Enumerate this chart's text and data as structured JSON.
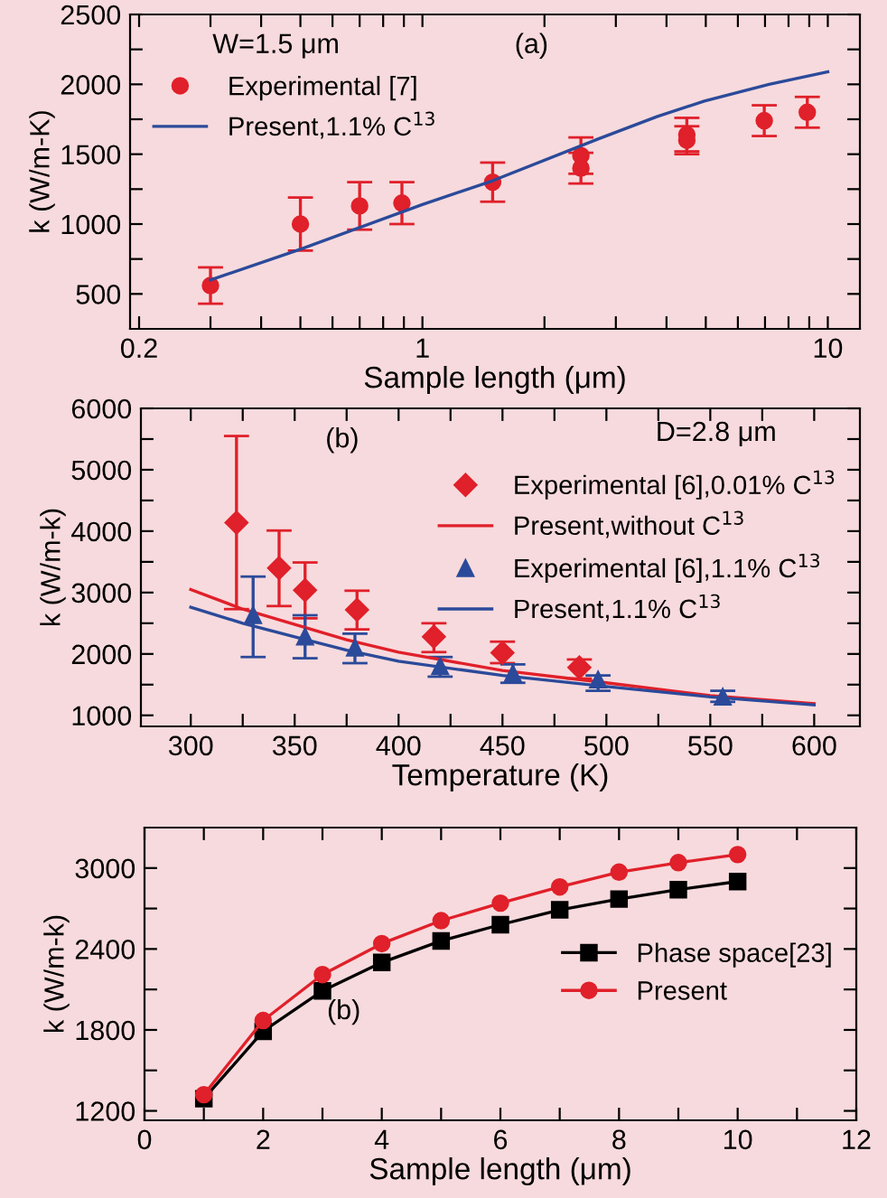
{
  "chart_data": [
    {
      "type": "scatter",
      "xlabel": "Sample length (μm)",
      "ylabel": "k (W/m-K)",
      "log": "x",
      "xlim": [
        0.19,
        12
      ],
      "xticks": [
        0.2,
        {
          "value": 0.3,
          "label": null
        },
        {
          "value": 0.4,
          "label": null
        },
        {
          "value": 0.5,
          "label": null
        },
        {
          "value": 0.6,
          "label": null
        },
        {
          "value": 0.7,
          "label": null
        },
        {
          "value": 0.8,
          "label": null
        },
        {
          "value": 0.9,
          "label": null
        },
        1,
        {
          "value": 2,
          "label": null
        },
        {
          "value": 3,
          "label": null
        },
        {
          "value": 4,
          "label": null
        },
        {
          "value": 5,
          "label": null
        },
        {
          "value": 6,
          "label": null
        },
        {
          "value": 7,
          "label": null
        },
        {
          "value": 8,
          "label": null
        },
        {
          "value": 9,
          "label": null
        },
        10
      ],
      "ylim": [
        250,
        2500
      ],
      "yticks": [
        500,
        {
          "value": 750,
          "label": null
        },
        1000,
        {
          "value": 1250,
          "label": null
        },
        1500,
        {
          "value": 1750,
          "label": null
        },
        2000,
        {
          "value": 2250,
          "label": null
        },
        2500
      ],
      "legend": "top left",
      "annotations": [
        "W=1.5 μm",
        "(a)"
      ],
      "series": [
        {
          "name": "Experimental [7]",
          "marker": "circle",
          "color": "#e0202a",
          "x": [
            0.3,
            0.5,
            0.7,
            0.89,
            1.49,
            2.46,
            2.46,
            4.49,
            4.49,
            6.97,
            8.9
          ],
          "values": [
            560,
            1000,
            1130,
            1150,
            1300,
            1490,
            1400,
            1640,
            1600,
            1740,
            1800
          ],
          "errors": [
            130,
            190,
            170,
            150,
            140,
            130,
            110,
            120,
            100,
            110,
            110
          ]
        },
        {
          "name": "Present,1.1% C$^{13}$",
          "type": "line",
          "marker": "none",
          "color": "#2b4a9a",
          "x": [
            0.3,
            0.5,
            1,
            1.49,
            2.72,
            3.8,
            4.96,
            7.16,
            10
          ],
          "values": [
            600,
            820,
            1140,
            1310,
            1610,
            1770,
            1880,
            2000,
            2090
          ]
        }
      ]
    },
    {
      "type": "scatter",
      "xlabel": "Temperature (K)",
      "ylabel": "k (W/m-k)",
      "xlim": [
        276,
        622
      ],
      "xticks": [
        300,
        {
          "value": 325,
          "label": null
        },
        350,
        {
          "value": 375,
          "label": null
        },
        400,
        {
          "value": 425,
          "label": null
        },
        450,
        {
          "value": 475,
          "label": null
        },
        500,
        {
          "value": 525,
          "label": null
        },
        550,
        {
          "value": 575,
          "label": null
        },
        600
      ],
      "ylim": [
        820,
        6000
      ],
      "yticks": [
        1000,
        {
          "value": 1500,
          "label": null
        },
        2000,
        {
          "value": 2500,
          "label": null
        },
        3000,
        {
          "value": 3500,
          "label": null
        },
        4000,
        {
          "value": 4500,
          "label": null
        },
        5000,
        {
          "value": 5500,
          "label": null
        },
        6000
      ],
      "legend": "top right",
      "annotations": [
        "(b)",
        "D=2.8 μm"
      ],
      "series": [
        {
          "name": "Experimental [6],0.01% C$^{13}$",
          "marker": "diamond",
          "color": "#e0202a",
          "x": [
            322,
            342.5,
            355,
            380,
            417,
            450,
            487
          ],
          "values": [
            4140,
            3400,
            3040,
            2720,
            2280,
            2020,
            1780
          ],
          "errors": [
            [
              2730,
              5550
            ],
            [
              2780,
              4010
            ],
            [
              2580,
              3490
            ],
            [
              2400,
              3030
            ],
            [
              2030,
              2500
            ],
            [
              1850,
              2200
            ],
            [
              1600,
              1910
            ]
          ]
        },
        {
          "name": "Present,without C$^{13}$",
          "type": "line",
          "marker": "none",
          "color": "#e0202a",
          "x": [
            300,
            325,
            350,
            375,
            400,
            450,
            500,
            550,
            600
          ],
          "values": [
            3050,
            2730,
            2480,
            2230,
            2030,
            1730,
            1530,
            1320,
            1190
          ]
        },
        {
          "name": "Experimental [6],1.1% C$^{13}$",
          "marker": "triangle",
          "color": "#2b4a9a",
          "x": [
            330,
            355,
            379,
            420,
            455,
            496,
            556
          ],
          "values": [
            2630,
            2280,
            2100,
            1800,
            1680,
            1580,
            1300
          ],
          "errors": [
            [
              1950,
              3260
            ],
            [
              1930,
              2630
            ],
            [
              1850,
              2330
            ],
            [
              1630,
              1950
            ],
            [
              1530,
              1830
            ],
            [
              1400,
              1650
            ],
            [
              1220,
              1400
            ]
          ]
        },
        {
          "name": "Present,1.1% C$^{13}$",
          "type": "line",
          "marker": "none",
          "color": "#2b4a9a",
          "x": [
            300,
            325,
            350,
            375,
            400,
            450,
            500,
            550,
            600
          ],
          "values": [
            2760,
            2500,
            2280,
            2060,
            1880,
            1650,
            1470,
            1300,
            1170
          ]
        }
      ]
    },
    {
      "type": "line",
      "xlabel": "Sample length (μm)",
      "ylabel": "k (W/m-k)",
      "xlim": [
        0,
        12
      ],
      "xticks": [
        0,
        {
          "value": 1,
          "label": null
        },
        2,
        {
          "value": 3,
          "label": null
        },
        4,
        {
          "value": 5,
          "label": null
        },
        6,
        {
          "value": 7,
          "label": null
        },
        8,
        {
          "value": 9,
          "label": null
        },
        10,
        {
          "value": 11,
          "label": null
        },
        12
      ],
      "ylim": [
        1130,
        3300
      ],
      "yticks": [
        1200,
        {
          "value": 1500,
          "label": null
        },
        1800,
        {
          "value": 2100,
          "label": null
        },
        2400,
        {
          "value": 2700,
          "label": null
        },
        3000
      ],
      "legend": "right",
      "annotations": [
        "(b)"
      ],
      "series": [
        {
          "name": "Phase space[23]",
          "marker": "square",
          "color": "#000000",
          "x": [
            1,
            2,
            3,
            4,
            5,
            6,
            7,
            8,
            9,
            10
          ],
          "values": [
            1290,
            1790,
            2090,
            2300,
            2460,
            2580,
            2690,
            2770,
            2840,
            2900
          ]
        },
        {
          "name": "Present",
          "marker": "circle",
          "color": "#e0202a",
          "x": [
            1,
            2,
            3,
            4,
            5,
            6,
            7,
            8,
            9,
            10
          ],
          "values": [
            1320,
            1870,
            2210,
            2440,
            2610,
            2740,
            2860,
            2970,
            3040,
            3100
          ]
        }
      ]
    }
  ]
}
